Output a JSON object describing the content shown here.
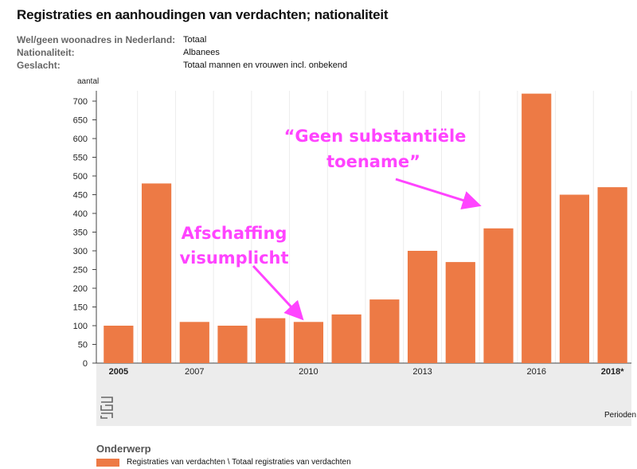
{
  "title": "Registraties en aanhoudingen van verdachten; nationaliteit",
  "meta": [
    {
      "label": "Wel/geen woonadres in Nederland:",
      "value": "Totaal"
    },
    {
      "label": "Nationaliteit:",
      "value": "Albanees"
    },
    {
      "label": "Geslacht:",
      "value": "Totaal mannen en vrouwen incl. onbekend"
    }
  ],
  "colors": {
    "bar": "#ed7a45",
    "annotation": "#ff44ff",
    "panel": "#ececec"
  },
  "chart_data": {
    "type": "bar",
    "ylabel": "aantal",
    "xlabel": "Perioden",
    "ylim": [
      0,
      700
    ],
    "yticks": [
      0,
      50,
      100,
      150,
      200,
      250,
      300,
      350,
      400,
      450,
      500,
      550,
      600,
      650,
      700
    ],
    "categories": [
      "2005",
      "2006",
      "2007",
      "2008",
      "2009",
      "2010",
      "2011",
      "2012",
      "2013",
      "2014",
      "2015",
      "2016",
      "2017",
      "2018*"
    ],
    "values": [
      100,
      480,
      110,
      100,
      120,
      110,
      130,
      170,
      300,
      270,
      360,
      720,
      450,
      470
    ],
    "tick_labels": [
      {
        "category": "2005",
        "bold": true
      },
      {
        "category": "2007",
        "bold": false
      },
      {
        "category": "2010",
        "bold": false
      },
      {
        "category": "2013",
        "bold": false
      },
      {
        "category": "2016",
        "bold": false
      },
      {
        "category": "2018*",
        "bold": true
      }
    ],
    "annotations": [
      {
        "lines": [
          "Afschaffing",
          "visumplicht"
        ],
        "target_category": "2010"
      },
      {
        "lines": [
          "“Geen substantiële",
          "toename”"
        ],
        "target_category": "2015"
      }
    ]
  },
  "legend": {
    "title": "Onderwerp",
    "label": "Registraties van verdachten \\ Totaal registraties van verdachten"
  }
}
